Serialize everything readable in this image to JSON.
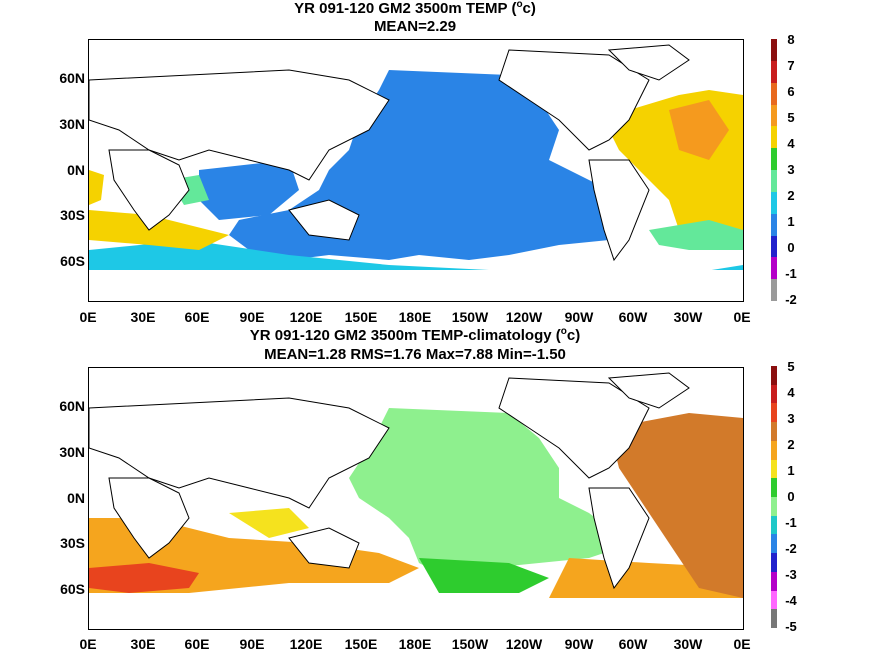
{
  "panels": [
    {
      "title_line1_pre": "YR 091-120 GM2 3500m TEMP (",
      "title_sup": "o",
      "title_line1_post": "c)",
      "title_line2": "MEAN=2.29",
      "y_labels": [
        "60N",
        "30N",
        "0N",
        "30S",
        "60S"
      ],
      "x_labels": [
        "0E",
        "30E",
        "60E",
        "90E",
        "120E",
        "150E",
        "180E",
        "150W",
        "120W",
        "90W",
        "60W",
        "30W",
        "0E"
      ],
      "colorbar_labels": [
        "8",
        "7",
        "6",
        "5",
        "4",
        "3",
        "2",
        "1",
        "0",
        "-1",
        "-2"
      ],
      "colorbar_colors": [
        "#8b0f0f",
        "#c81e1e",
        "#e8691e",
        "#f59a1e",
        "#f5d200",
        "#2ecc2e",
        "#63e89a",
        "#1ec8e6",
        "#2a84e6",
        "#2222cc",
        "#b400c8",
        "#9a9a9a"
      ]
    },
    {
      "title_line1_pre": "YR 091-120 GM2 3500m TEMP-climatology (",
      "title_sup": "o",
      "title_line1_post": "c)",
      "title_line2": "MEAN=1.28   RMS=1.76   Max=7.88   Min=-1.50",
      "y_labels": [
        "60N",
        "30N",
        "0N",
        "30S",
        "60S"
      ],
      "x_labels": [
        "0E",
        "30E",
        "60E",
        "90E",
        "120E",
        "150E",
        "180E",
        "150W",
        "120W",
        "90W",
        "60W",
        "30W",
        "0E"
      ],
      "colorbar_labels": [
        "5",
        "4",
        "3",
        "2",
        "1",
        "0",
        "-1",
        "-2",
        "-3",
        "-4",
        "-5"
      ],
      "colorbar_colors": [
        "#8b0f0f",
        "#c81e1e",
        "#e8441e",
        "#d27a2a",
        "#f5a51e",
        "#f5e21e",
        "#2ecc2e",
        "#8ef08e",
        "#1ec8c8",
        "#2a84e6",
        "#2222cc",
        "#b400c8",
        "#ff66ff",
        "#777777"
      ]
    }
  ]
}
